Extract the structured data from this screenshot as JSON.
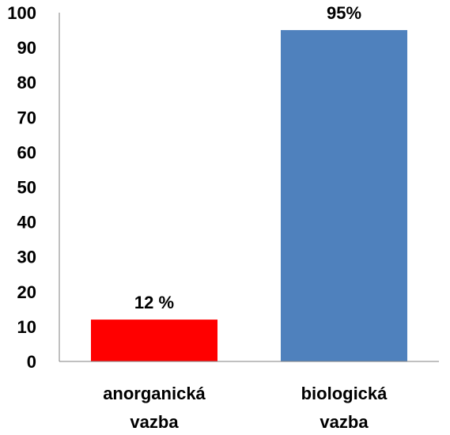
{
  "chart_data": {
    "type": "bar",
    "categories": [
      [
        "anorganická",
        "vazba"
      ],
      [
        "biologická",
        "vazba"
      ]
    ],
    "values": [
      12,
      95
    ],
    "data_labels": [
      "12 %",
      "95%"
    ],
    "bar_colors": [
      "#ff0000",
      "#4f81bd"
    ],
    "ylim": [
      0,
      100
    ],
    "yticks": [
      0,
      10,
      20,
      30,
      40,
      50,
      60,
      70,
      80,
      90,
      100
    ],
    "grid": false,
    "legend": "none",
    "axis_color": "#808080"
  }
}
